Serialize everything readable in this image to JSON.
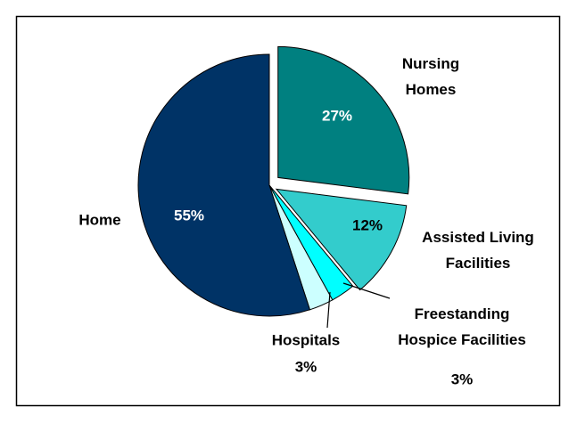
{
  "chart_data": {
    "type": "pie",
    "categories": [
      "Nursing Homes",
      "Assisted Living Facilities",
      "Freestanding Hospice Facilities",
      "Hospitals",
      "Home"
    ],
    "values": [
      27,
      12,
      3,
      3,
      55
    ],
    "value_labels": [
      "27%",
      "12%",
      "3%",
      "3%",
      "55%"
    ],
    "colors": [
      "#008080",
      "#33cccc",
      "#00ffff",
      "#ccffff",
      "#003366"
    ]
  }
}
